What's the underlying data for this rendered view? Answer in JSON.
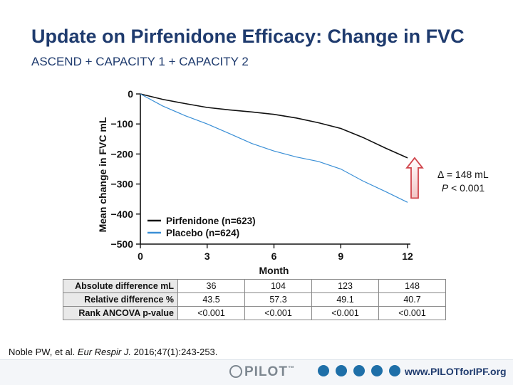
{
  "slide": {
    "title": "Update on Pirfenidone Efficacy: Change in FVC",
    "subtitle": "ASCEND + CAPACITY 1 + CAPACITY 2",
    "citation_prefix": "Noble PW, et al. ",
    "citation_journal": "Eur Respir J.",
    "citation_suffix": " 2016;47(1):243-253."
  },
  "stats": {
    "delta": "∆ = 148 mL",
    "p_symbol": "P",
    "p_rest": " < 0.001"
  },
  "chart_data": {
    "type": "line",
    "title": "",
    "xlabel": "Month",
    "ylabel": "Mean change in FVC mL",
    "x_ticks": [
      0,
      3,
      6,
      9,
      12
    ],
    "y_ticks": [
      0,
      -100,
      -200,
      -300,
      -400,
      -500
    ],
    "y_tick_labels": [
      "0",
      "−100",
      "−200",
      "−300",
      "−400",
      "−500"
    ],
    "xlim": [
      0,
      12
    ],
    "ylim": [
      -500,
      0
    ],
    "grid": false,
    "legend_position": "bottom-left",
    "series": [
      {
        "name": "Pirfenidone (n=623)",
        "color": "#111111",
        "x": [
          0,
          1,
          2,
          3,
          4,
          5,
          6,
          7,
          8,
          9,
          10,
          11,
          12
        ],
        "values": [
          0,
          -18,
          -32,
          -45,
          -53,
          -60,
          -68,
          -80,
          -96,
          -115,
          -145,
          -180,
          -213
        ]
      },
      {
        "name": "Placebo (n=624)",
        "color": "#3a8fd6",
        "x": [
          0,
          1,
          2,
          3,
          4,
          5,
          6,
          7,
          8,
          9,
          10,
          11,
          12
        ],
        "values": [
          0,
          -40,
          -72,
          -100,
          -132,
          -165,
          -190,
          -210,
          -225,
          -250,
          -290,
          -325,
          -361
        ]
      }
    ],
    "annotation_arrow_color": "#d0454c"
  },
  "table": {
    "rows": [
      {
        "label": "Absolute difference mL",
        "values": [
          "36",
          "104",
          "123",
          "148"
        ]
      },
      {
        "label": "Relative difference %",
        "values": [
          "43.5",
          "57.3",
          "49.1",
          "40.7"
        ]
      },
      {
        "label": "Rank ANCOVA p-value",
        "values": [
          "<0.001",
          "<0.001",
          "<0.001",
          "<0.001"
        ]
      }
    ]
  },
  "footer": {
    "logo_text": "PILOT",
    "tm": "™",
    "url": "www.PILOTforIPF.org",
    "icons": [
      "circle-icon",
      "circle-icon",
      "circle-icon",
      "circle-icon",
      "circle-icon"
    ]
  }
}
